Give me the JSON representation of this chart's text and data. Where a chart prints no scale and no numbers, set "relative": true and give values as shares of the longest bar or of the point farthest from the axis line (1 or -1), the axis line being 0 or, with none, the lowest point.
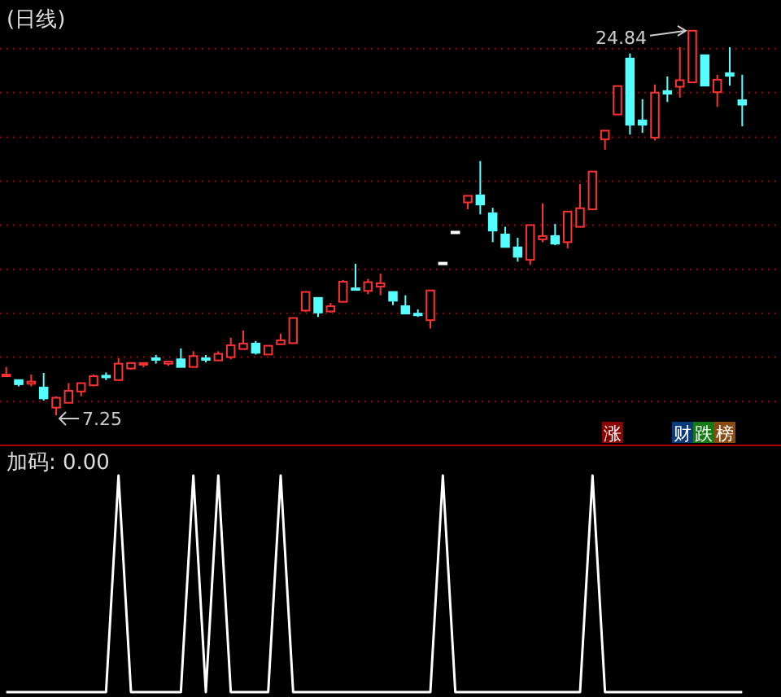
{
  "chart_data": [
    {
      "type": "candlestick",
      "title": "(日线)",
      "categories": [
        null,
        null,
        null,
        null,
        null,
        null,
        null,
        null,
        null,
        null,
        null,
        null,
        null,
        null,
        null,
        null,
        null,
        null,
        null,
        null,
        null,
        null,
        null,
        null,
        null,
        null,
        null,
        null,
        null,
        null,
        null,
        null,
        null,
        null,
        null,
        null,
        null,
        null,
        null,
        null,
        null,
        null,
        null,
        null,
        null,
        null,
        null,
        null,
        null,
        null,
        null,
        null,
        null,
        null,
        null,
        null,
        null,
        null,
        null,
        null
      ],
      "ohlc": [
        [
          9.06,
          9.46,
          9.06,
          9.11
        ],
        [
          8.86,
          8.86,
          8.57,
          8.67
        ],
        [
          8.69,
          9.11,
          8.57,
          8.79
        ],
        [
          8.52,
          9.19,
          7.92,
          8.02
        ],
        [
          7.6,
          8.12,
          7.25,
          8.05
        ],
        [
          7.82,
          8.72,
          7.82,
          8.37
        ],
        [
          8.34,
          8.72,
          8.12,
          8.72
        ],
        [
          8.62,
          9.11,
          8.57,
          9.04
        ],
        [
          9.06,
          9.21,
          8.86,
          9.01
        ],
        [
          8.86,
          9.86,
          8.86,
          9.61
        ],
        [
          9.39,
          9.68,
          9.34,
          9.64
        ],
        [
          9.59,
          9.64,
          9.44,
          9.64
        ],
        [
          9.86,
          10.01,
          9.61,
          9.81
        ],
        [
          9.61,
          9.71,
          9.51,
          9.71
        ],
        [
          9.81,
          10.31,
          9.46,
          9.46
        ],
        [
          9.46,
          10.18,
          9.46,
          9.96
        ],
        [
          9.86,
          10.01,
          9.66,
          9.81
        ],
        [
          9.76,
          10.18,
          9.76,
          10.06
        ],
        [
          9.91,
          10.8,
          9.81,
          10.45
        ],
        [
          10.28,
          11.13,
          10.28,
          10.53
        ],
        [
          10.53,
          10.65,
          10.03,
          10.11
        ],
        [
          10.03,
          10.43,
          10.03,
          10.43
        ],
        [
          10.5,
          10.98,
          10.5,
          10.68
        ],
        [
          10.55,
          11.7,
          10.55,
          11.7
        ],
        [
          12.04,
          12.89,
          11.97,
          12.89
        ],
        [
          12.62,
          12.62,
          11.75,
          11.95
        ],
        [
          12.0,
          12.39,
          11.95,
          12.24
        ],
        [
          12.44,
          13.44,
          12.44,
          13.36
        ],
        [
          13.06,
          14.18,
          13.01,
          13.01
        ],
        [
          12.94,
          13.49,
          12.79,
          13.34
        ],
        [
          13.14,
          13.73,
          12.74,
          13.29
        ],
        [
          12.89,
          12.89,
          12.29,
          12.49
        ],
        [
          12.24,
          12.74,
          11.9,
          11.9
        ],
        [
          11.9,
          12.09,
          11.75,
          11.85
        ],
        [
          11.6,
          12.96,
          11.22,
          12.96
        ],
        [
          14.23,
          14.23,
          14.23,
          14.23
        ],
        [
          15.65,
          15.65,
          15.65,
          15.65
        ],
        [
          16.99,
          17.29,
          16.67,
          17.29
        ],
        [
          17.31,
          18.88,
          16.44,
          16.89
        ],
        [
          16.49,
          16.74,
          15.17,
          15.7
        ],
        [
          15.52,
          15.87,
          14.95,
          14.95
        ],
        [
          14.93,
          15.37,
          14.28,
          14.5
        ],
        [
          14.36,
          15.95,
          14.13,
          15.95
        ],
        [
          15.3,
          16.94,
          15.17,
          15.45
        ],
        [
          15.45,
          16.0,
          15.03,
          15.1
        ],
        [
          15.17,
          16.57,
          14.88,
          16.57
        ],
        [
          15.87,
          17.83,
          15.87,
          16.72
        ],
        [
          16.67,
          18.4,
          16.67,
          18.4
        ],
        [
          19.87,
          20.27,
          19.4,
          20.27
        ],
        [
          21.01,
          22.31,
          21.01,
          22.31
        ],
        [
          23.57,
          23.8,
          20.09,
          20.54
        ],
        [
          20.74,
          21.71,
          20.17,
          20.54
        ],
        [
          19.95,
          22.38,
          19.82,
          22.01
        ],
        [
          22.08,
          22.75,
          21.58,
          21.96
        ],
        [
          22.28,
          24.09,
          21.78,
          22.58
        ],
        [
          22.48,
          24.84,
          22.48,
          24.84
        ],
        [
          23.72,
          23.72,
          22.33,
          22.33
        ],
        [
          22.03,
          22.83,
          21.36,
          22.6
        ],
        [
          22.9,
          24.09,
          22.33,
          22.78
        ],
        [
          21.66,
          22.83,
          20.47,
          21.46
        ]
      ],
      "colors": [
        "#ff3232",
        "#54ffff",
        "#ff3232",
        "#54ffff",
        "#ff3232",
        "#ff3232",
        "#ff3232",
        "#ff3232",
        "#54ffff",
        "#ff3232",
        "#ff3232",
        "#ff3232",
        "#54ffff",
        "#ff3232",
        "#54ffff",
        "#ff3232",
        "#54ffff",
        "#ff3232",
        "#ff3232",
        "#ff3232",
        "#54ffff",
        "#ff3232",
        "#ff3232",
        "#ff3232",
        "#ff3232",
        "#54ffff",
        "#ff3232",
        "#ff3232",
        "#54ffff",
        "#ff3232",
        "#ff3232",
        "#54ffff",
        "#54ffff",
        "#54ffff",
        "#ff3232",
        "#ffffff",
        "#ffffff",
        "#ff3232",
        "#54ffff",
        "#54ffff",
        "#54ffff",
        "#54ffff",
        "#ff3232",
        "#ff3232",
        "#54ffff",
        "#ff3232",
        "#ff3232",
        "#ff3232",
        "#ff3232",
        "#ff3232",
        "#54ffff",
        "#54ffff",
        "#ff3232",
        "#54ffff",
        "#ff3232",
        "#ff3232",
        "#54ffff",
        "#ff3232",
        "#54ffff",
        "#54ffff"
      ],
      "yticks": [
        {
          "value": 7.87,
          "label": null
        },
        {
          "value": 9.91,
          "label": null
        },
        {
          "value": 11.92,
          "label": null
        },
        {
          "value": 13.93,
          "label": null
        },
        {
          "value": 15.95,
          "label": null
        },
        {
          "value": 17.96,
          "label": null
        },
        {
          "value": 19.97,
          "label": null
        },
        {
          "value": 22.01,
          "label": null
        },
        {
          "value": 24.02,
          "label": null
        }
      ],
      "grid": "y",
      "annotations": [
        "24.84",
        "7.25",
        "涨",
        "财",
        "跌",
        "榜"
      ]
    },
    {
      "type": "line",
      "title": "加码: 0.00",
      "relative": true,
      "categories": [
        null,
        null,
        null,
        null,
        null,
        null,
        null,
        null,
        null,
        null,
        null,
        null,
        null,
        null,
        null,
        null,
        null,
        null,
        null,
        null,
        null,
        null,
        null,
        null,
        null,
        null,
        null,
        null,
        null,
        null,
        null,
        null,
        null,
        null,
        null,
        null,
        null,
        null,
        null,
        null,
        null,
        null,
        null,
        null,
        null,
        null,
        null,
        null,
        null,
        null,
        null,
        null,
        null,
        null,
        null,
        null,
        null,
        null,
        null,
        null
      ],
      "series": [
        {
          "color": "#ffffff",
          "values": [
            0,
            0,
            0,
            0,
            0,
            0,
            0,
            0,
            0,
            1,
            0,
            0,
            0,
            0,
            0,
            1,
            0,
            1,
            0,
            0,
            0,
            0,
            1,
            0,
            0,
            0,
            0,
            0,
            0,
            0,
            0,
            0,
            0,
            0,
            0,
            1,
            0,
            0,
            0,
            0,
            0,
            0,
            0,
            0,
            0,
            0,
            0,
            1,
            0,
            0,
            0,
            0,
            0,
            0,
            0,
            0,
            0,
            0,
            0,
            0
          ]
        }
      ]
    }
  ]
}
